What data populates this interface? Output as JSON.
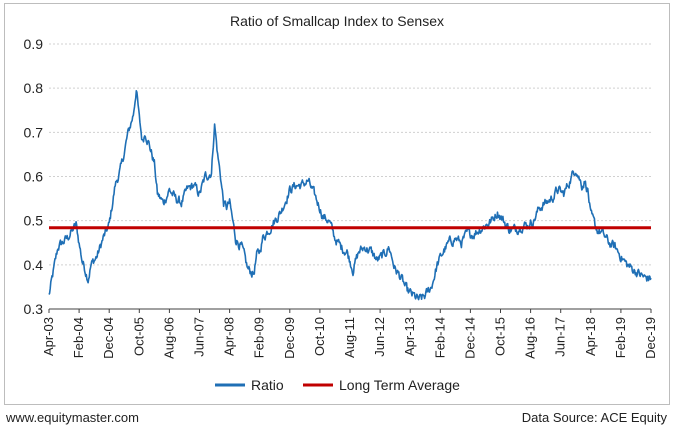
{
  "footer": {
    "website": "www.equitymaster.com",
    "source": "Data Source: ACE Equity"
  },
  "colors": {
    "ratio": "#1f6fb5",
    "average": "#c00000",
    "grid": "#d0d0d0",
    "axis": "#404040"
  },
  "chart_data": {
    "type": "line",
    "title": "Ratio of Smallcap Index to Sensex",
    "ylim": [
      0.3,
      0.9
    ],
    "yticks": [
      "0.3",
      "0.4",
      "0.5",
      "0.6",
      "0.7",
      "0.8",
      "0.9"
    ],
    "xlim": [
      "2003-04",
      "2019-12"
    ],
    "xtick_labels": [
      "Apr-03",
      "Feb-04",
      "Dec-04",
      "Oct-05",
      "Aug-06",
      "Jun-07",
      "Apr-08",
      "Feb-09",
      "Dec-09",
      "Oct-10",
      "Aug-11",
      "Jun-12",
      "Apr-13",
      "Feb-14",
      "Dec-14",
      "Oct-15",
      "Aug-16",
      "Jun-17",
      "Apr-18",
      "Feb-19",
      "Dec-19"
    ],
    "grid": true,
    "legend": "bottom",
    "series": [
      {
        "name": "Ratio",
        "x": [
          "2003-04",
          "2003-07",
          "2003-10",
          "2004-01",
          "2004-03",
          "2004-05",
          "2004-06",
          "2004-08",
          "2004-10",
          "2004-12",
          "2005-02",
          "2005-04",
          "2005-06",
          "2005-08",
          "2005-09",
          "2005-10",
          "2005-11",
          "2005-12",
          "2006-01",
          "2006-03",
          "2006-04",
          "2006-05",
          "2006-06",
          "2006-08",
          "2006-10",
          "2006-12",
          "2007-02",
          "2007-04",
          "2007-06",
          "2007-08",
          "2007-10",
          "2007-11",
          "2007-12",
          "2008-01",
          "2008-02",
          "2008-03",
          "2008-04",
          "2008-05",
          "2008-06",
          "2008-08",
          "2008-10",
          "2008-12",
          "2009-01",
          "2009-02",
          "2009-03",
          "2009-05",
          "2009-07",
          "2009-09",
          "2009-12",
          "2010-02",
          "2010-04",
          "2010-06",
          "2010-08",
          "2010-10",
          "2010-11",
          "2011-01",
          "2011-03",
          "2011-05",
          "2011-07",
          "2011-09",
          "2011-11",
          "2012-01",
          "2012-03",
          "2012-05",
          "2012-07",
          "2012-09",
          "2012-11",
          "2013-01",
          "2013-03",
          "2013-05",
          "2013-07",
          "2013-09",
          "2013-11",
          "2014-01",
          "2014-03",
          "2014-05",
          "2014-07",
          "2014-09",
          "2014-11",
          "2015-01",
          "2015-03",
          "2015-05",
          "2015-07",
          "2015-09",
          "2015-11",
          "2016-01",
          "2016-03",
          "2016-05",
          "2016-07",
          "2016-09",
          "2016-11",
          "2017-01",
          "2017-03",
          "2017-05",
          "2017-07",
          "2017-09",
          "2017-11",
          "2017-12",
          "2018-01",
          "2018-02",
          "2018-03",
          "2018-04",
          "2018-06",
          "2018-08",
          "2018-10",
          "2018-12",
          "2019-02",
          "2019-04",
          "2019-06",
          "2019-08",
          "2019-10",
          "2019-12"
        ],
        "values": [
          0.33,
          0.44,
          0.46,
          0.49,
          0.41,
          0.37,
          0.4,
          0.42,
          0.46,
          0.49,
          0.58,
          0.62,
          0.69,
          0.74,
          0.8,
          0.73,
          0.68,
          0.7,
          0.68,
          0.63,
          0.56,
          0.55,
          0.54,
          0.57,
          0.55,
          0.54,
          0.57,
          0.58,
          0.56,
          0.6,
          0.61,
          0.72,
          0.65,
          0.6,
          0.54,
          0.53,
          0.54,
          0.5,
          0.46,
          0.44,
          0.39,
          0.38,
          0.42,
          0.43,
          0.46,
          0.48,
          0.5,
          0.52,
          0.57,
          0.58,
          0.58,
          0.59,
          0.56,
          0.53,
          0.51,
          0.5,
          0.46,
          0.44,
          0.43,
          0.39,
          0.43,
          0.44,
          0.43,
          0.41,
          0.42,
          0.44,
          0.39,
          0.37,
          0.34,
          0.33,
          0.32,
          0.33,
          0.35,
          0.4,
          0.43,
          0.45,
          0.46,
          0.45,
          0.47,
          0.47,
          0.48,
          0.49,
          0.5,
          0.52,
          0.5,
          0.48,
          0.48,
          0.49,
          0.49,
          0.5,
          0.53,
          0.54,
          0.55,
          0.57,
          0.56,
          0.59,
          0.62,
          0.6,
          0.58,
          0.59,
          0.57,
          0.51,
          0.48,
          0.47,
          0.45,
          0.44,
          0.42,
          0.4,
          0.39,
          0.38,
          0.37,
          0.37
        ]
      },
      {
        "name": "Long Term Average",
        "values": [
          0.484
        ]
      }
    ]
  }
}
